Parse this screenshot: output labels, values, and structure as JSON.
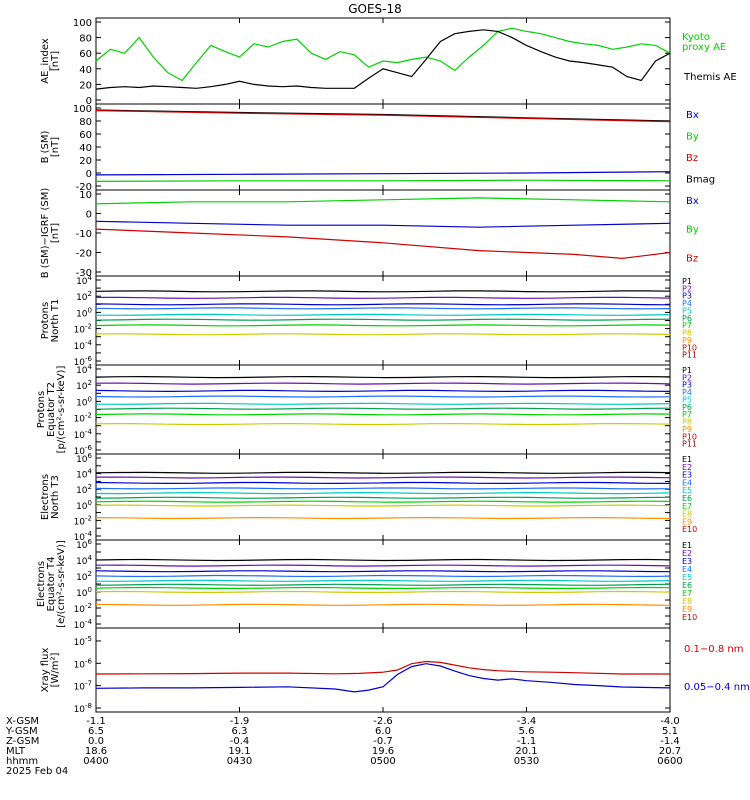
{
  "title": "GOES-18",
  "colors": {
    "black": "#000000",
    "green": "#00d200",
    "red": "#d00000",
    "darkred": "#8b0000",
    "blue": "#0000cc",
    "cyan": "#00c8c8",
    "yellow": "#cccc00"
  },
  "chart_data": [
    {
      "type": "line",
      "title": "",
      "ylabel": [
        "AE_index",
        "[nT]"
      ],
      "ylim": [
        0,
        100
      ],
      "yticks": [
        "0",
        "20",
        "40",
        "60",
        "80",
        "100"
      ],
      "scale": "linear",
      "right_labels": [
        "Kyoto\nproxy AE",
        "Themis AE"
      ],
      "series": [
        {
          "name": "Kyoto proxy AE",
          "color": "#00d200",
          "x": [
            0,
            3,
            6,
            9,
            12,
            15,
            18,
            21,
            24,
            27,
            30,
            33,
            36,
            39,
            42,
            45,
            48,
            51,
            54,
            57,
            60,
            63,
            66,
            69,
            72,
            75,
            78,
            81,
            84,
            87,
            90,
            93,
            96,
            99,
            102,
            105,
            108,
            111,
            114,
            117,
            120
          ],
          "y": [
            50,
            65,
            60,
            80,
            55,
            35,
            25,
            48,
            70,
            62,
            55,
            72,
            68,
            75,
            78,
            60,
            52,
            62,
            58,
            42,
            50,
            48,
            52,
            55,
            50,
            38,
            55,
            70,
            88,
            92,
            88,
            85,
            80,
            75,
            72,
            70,
            65,
            68,
            72,
            70,
            60
          ]
        },
        {
          "name": "Themis AE",
          "color": "#000000",
          "x": [
            0,
            3,
            6,
            9,
            12,
            15,
            18,
            21,
            24,
            27,
            30,
            33,
            36,
            39,
            42,
            45,
            48,
            51,
            54,
            57,
            60,
            63,
            66,
            69,
            72,
            75,
            78,
            81,
            84,
            87,
            90,
            93,
            96,
            99,
            102,
            105,
            108,
            111,
            114,
            117,
            120
          ],
          "y": [
            14,
            16,
            17,
            16,
            18,
            17,
            16,
            15,
            17,
            20,
            24,
            20,
            18,
            17,
            18,
            16,
            15,
            15,
            15,
            28,
            40,
            35,
            30,
            52,
            75,
            85,
            88,
            90,
            88,
            80,
            70,
            62,
            55,
            50,
            48,
            45,
            42,
            30,
            25,
            50,
            60
          ]
        }
      ]
    },
    {
      "type": "line",
      "ylabel": [
        "B (SM)",
        "[nT]"
      ],
      "ylim": [
        -20,
        100
      ],
      "yticks": [
        "-20",
        "0",
        "20",
        "40",
        "60",
        "80",
        "100"
      ],
      "scale": "linear",
      "right_labels": [
        "Bx",
        "By",
        "Bz",
        "Bmag"
      ],
      "series": [
        {
          "name": "Bmag",
          "color": "#000000",
          "x": [
            0,
            30,
            60,
            90,
            120
          ],
          "y": [
            97,
            93,
            90,
            85,
            80
          ]
        },
        {
          "name": "Bz",
          "color": "#d00000",
          "x": [
            0,
            30,
            60,
            90,
            120
          ],
          "y": [
            96,
            92,
            89,
            84,
            79
          ]
        },
        {
          "name": "Bx",
          "color": "#0000cc",
          "x": [
            0,
            30,
            60,
            90,
            120
          ],
          "y": [
            -3,
            -2,
            -1,
            0,
            2
          ]
        },
        {
          "name": "By",
          "color": "#00d200",
          "x": [
            0,
            30,
            60,
            90,
            120
          ],
          "y": [
            -13,
            -12,
            -12,
            -11,
            -12
          ]
        }
      ]
    },
    {
      "type": "line",
      "ylabel": [
        "B (SM)−IGRF (SM)",
        "[nT]"
      ],
      "ylim": [
        -30,
        10
      ],
      "yticks": [
        "-30",
        "-20",
        "-10",
        "0",
        "10"
      ],
      "scale": "linear",
      "right_labels": [
        "Bx",
        "By",
        "Bz"
      ],
      "series": [
        {
          "name": "By",
          "color": "#00d200",
          "x": [
            0,
            20,
            40,
            60,
            80,
            100,
            120
          ],
          "y": [
            5,
            6,
            6,
            7,
            8,
            7,
            6
          ]
        },
        {
          "name": "Bx",
          "color": "#0000cc",
          "x": [
            0,
            20,
            40,
            60,
            80,
            100,
            120
          ],
          "y": [
            -4,
            -5,
            -6,
            -6,
            -7,
            -6,
            -5
          ]
        },
        {
          "name": "Bz",
          "color": "#d00000",
          "x": [
            0,
            20,
            40,
            60,
            80,
            100,
            110,
            120
          ],
          "y": [
            -8,
            -10,
            -12,
            -15,
            -19,
            -21,
            -23,
            -20
          ]
        }
      ]
    },
    {
      "type": "line",
      "ylabel": [
        "Protons",
        "North T1"
      ],
      "scale": "log",
      "ylim_exp": [
        -6,
        4
      ],
      "right_labels": [
        "P1",
        "P2",
        "P3",
        "P4",
        "P5",
        "P6",
        "P7",
        "P8",
        "P9",
        "P10",
        "P11"
      ],
      "label_colors": [
        "#000000",
        "#6a0dad",
        "#0000cc",
        "#1e6eff",
        "#00c8c8",
        "#00a050",
        "#00d200",
        "#cccc00",
        "#ff8c00",
        "#d00000",
        "#8b0000"
      ],
      "channel_levels_exp": [
        2.6,
        1.8,
        1.0,
        0.5,
        -0.3,
        -0.9,
        -1.6,
        -2.7
      ]
    },
    {
      "type": "line",
      "ylabel": [
        "Protons",
        "Equator T2",
        "[p/(cm²-s-sr-keV)]"
      ],
      "scale": "log",
      "ylim_exp": [
        -6,
        4
      ],
      "right_labels": [
        "P1",
        "P2",
        "P3",
        "P4",
        "P5",
        "P6",
        "P7",
        "P8",
        "P9",
        "P10",
        "P11"
      ],
      "label_colors": [
        "#000000",
        "#6a0dad",
        "#0000cc",
        "#1e6eff",
        "#00c8c8",
        "#00a050",
        "#00d200",
        "#cccc00",
        "#ff8c00",
        "#d00000",
        "#8b0000"
      ],
      "channel_levels_exp": [
        3.0,
        2.2,
        1.3,
        0.6,
        -0.3,
        -0.9,
        -1.6,
        -2.8
      ]
    },
    {
      "type": "line",
      "ylabel": [
        "Electrons",
        "North T3"
      ],
      "scale": "log",
      "ylim_exp": [
        -4,
        6
      ],
      "right_labels": [
        "E1",
        "E2",
        "E3",
        "E4",
        "E5",
        "E6",
        "E7",
        "E8",
        "E9",
        "E10"
      ],
      "label_colors": [
        "#000000",
        "#6a0dad",
        "#0000cc",
        "#1e6eff",
        "#00c8c8",
        "#00a050",
        "#00d200",
        "#cccc00",
        "#ff8c00",
        "#d00000"
      ],
      "channel_levels_exp": [
        4.1,
        3.5,
        2.8,
        2.1,
        1.5,
        0.9,
        0.4,
        -0.1,
        -1.7
      ]
    },
    {
      "type": "line",
      "ylabel": [
        "Electrons",
        "Equator T4",
        "[e/(cm²-s-sr-keV)]"
      ],
      "scale": "log",
      "ylim_exp": [
        -4,
        6
      ],
      "right_labels": [
        "E1",
        "E2",
        "E3",
        "E4",
        "E5",
        "E6",
        "E7",
        "E8",
        "E9",
        "E10"
      ],
      "label_colors": [
        "#000000",
        "#6a0dad",
        "#0000cc",
        "#1e6eff",
        "#00c8c8",
        "#00a050",
        "#00d200",
        "#cccc00",
        "#ff8c00",
        "#d00000"
      ],
      "channel_levels_exp": [
        4.0,
        3.3,
        2.6,
        2.0,
        1.4,
        0.9,
        0.5,
        0.0,
        -1.6
      ]
    },
    {
      "type": "line",
      "ylabel": [
        "Xray flux",
        "[W/m²]"
      ],
      "scale": "log",
      "ylim_exp": [
        -8,
        -4.6
      ],
      "right_labels": [
        "0.1−0.8 nm",
        "0.05−0.4 nm"
      ],
      "series": [
        {
          "name": "0.1−0.8 nm",
          "color": "#d00000",
          "x": [
            0,
            10,
            20,
            30,
            40,
            50,
            55,
            60,
            63,
            66,
            69,
            72,
            75,
            78,
            81,
            84,
            87,
            90,
            95,
            100,
            110,
            120
          ],
          "y": [
            -6.48,
            -6.47,
            -6.46,
            -6.44,
            -6.44,
            -6.47,
            -6.45,
            -6.4,
            -6.3,
            -6.02,
            -5.92,
            -5.96,
            -6.08,
            -6.2,
            -6.28,
            -6.33,
            -6.36,
            -6.38,
            -6.4,
            -6.42,
            -6.48,
            -6.48
          ]
        },
        {
          "name": "0.05−0.4 nm",
          "color": "#0000cc",
          "x": [
            0,
            10,
            20,
            30,
            40,
            50,
            54,
            57,
            60,
            63,
            66,
            69,
            72,
            75,
            78,
            81,
            84,
            87,
            90,
            95,
            100,
            105,
            110,
            120
          ],
          "y": [
            -7.12,
            -7.1,
            -7.1,
            -7.08,
            -7.05,
            -7.15,
            -7.28,
            -7.2,
            -7.05,
            -6.5,
            -6.15,
            -6.02,
            -6.12,
            -6.35,
            -6.55,
            -6.68,
            -6.75,
            -6.7,
            -6.78,
            -6.85,
            -6.95,
            -7.0,
            -7.06,
            -7.1
          ]
        }
      ]
    }
  ],
  "xaxis": {
    "row_labels": [
      "X-GSM",
      "Y-GSM",
      "Z-GSM",
      "MLT",
      "hhmm",
      "2025 Feb 04"
    ],
    "columns": [
      {
        "x": 0,
        "vals": [
          "-1.1",
          "6.5",
          "0.0",
          "18.6",
          "0400"
        ]
      },
      {
        "x": 30,
        "vals": [
          "-1.9",
          "6.3",
          "-0.4",
          "19.1",
          "0430"
        ]
      },
      {
        "x": 60,
        "vals": [
          "-2.6",
          "6.0",
          "-0.7",
          "19.6",
          "0500"
        ]
      },
      {
        "x": 90,
        "vals": [
          "-3.4",
          "5.6",
          "-1.1",
          "20.1",
          "0530"
        ]
      },
      {
        "x": 120,
        "vals": [
          "-4.0",
          "5.1",
          "-1.4",
          "20.7",
          "0600"
        ]
      }
    ]
  }
}
